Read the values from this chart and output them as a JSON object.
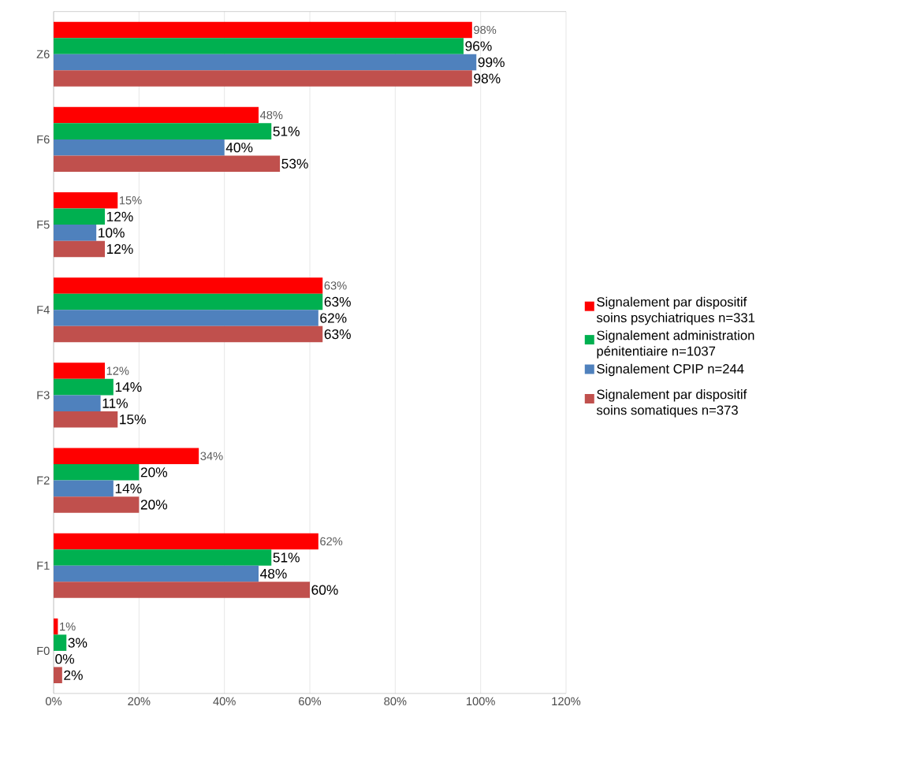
{
  "chart_data": {
    "type": "bar",
    "orientation": "horizontal",
    "categories": [
      "Z6",
      "F6",
      "F5",
      "F4",
      "F3",
      "F2",
      "F1",
      "F0"
    ],
    "series": [
      {
        "name": "Signalement par dispositif soins psychiatriques n=331",
        "color": "#ff0000",
        "values": [
          98,
          48,
          15,
          63,
          12,
          34,
          62,
          1
        ],
        "value_labels": [
          "98%",
          "48%",
          "15%",
          "63%",
          "12%",
          "34%",
          "62%",
          "1%"
        ]
      },
      {
        "name": "Signalement administration pénitentiaire n=1037",
        "color": "#00b050",
        "values": [
          96,
          51,
          12,
          63,
          14,
          20,
          51,
          3
        ],
        "value_labels": [
          "96%",
          "51%",
          "12%",
          "63%",
          "14%",
          "20%",
          "51%",
          "3%"
        ]
      },
      {
        "name": "Signalement CPIP n=244",
        "color": "#4f81bd",
        "values": [
          99,
          40,
          10,
          62,
          11,
          14,
          48,
          0
        ],
        "value_labels": [
          "99%",
          "40%",
          "10%",
          "62%",
          "11%",
          "14%",
          "48%",
          "0%"
        ]
      },
      {
        "name": "Signalement par dispositif soins somatiques n=373",
        "color": "#c0504d",
        "values": [
          98,
          53,
          12,
          63,
          15,
          20,
          60,
          2
        ],
        "value_labels": [
          "98%",
          "53%",
          "12%",
          "63%",
          "15%",
          "20%",
          "60%",
          "2%"
        ]
      }
    ],
    "xlim": [
      0,
      120
    ],
    "xticks": [
      {
        "value": 0,
        "label": "0%"
      },
      {
        "value": 20,
        "label": "20%"
      },
      {
        "value": 40,
        "label": "40%"
      },
      {
        "value": 60,
        "label": "60%"
      },
      {
        "value": 80,
        "label": "80%"
      },
      {
        "value": 100,
        "label": "100%"
      },
      {
        "value": 120,
        "label": "120%"
      }
    ],
    "grid": "x",
    "legend": "right"
  }
}
